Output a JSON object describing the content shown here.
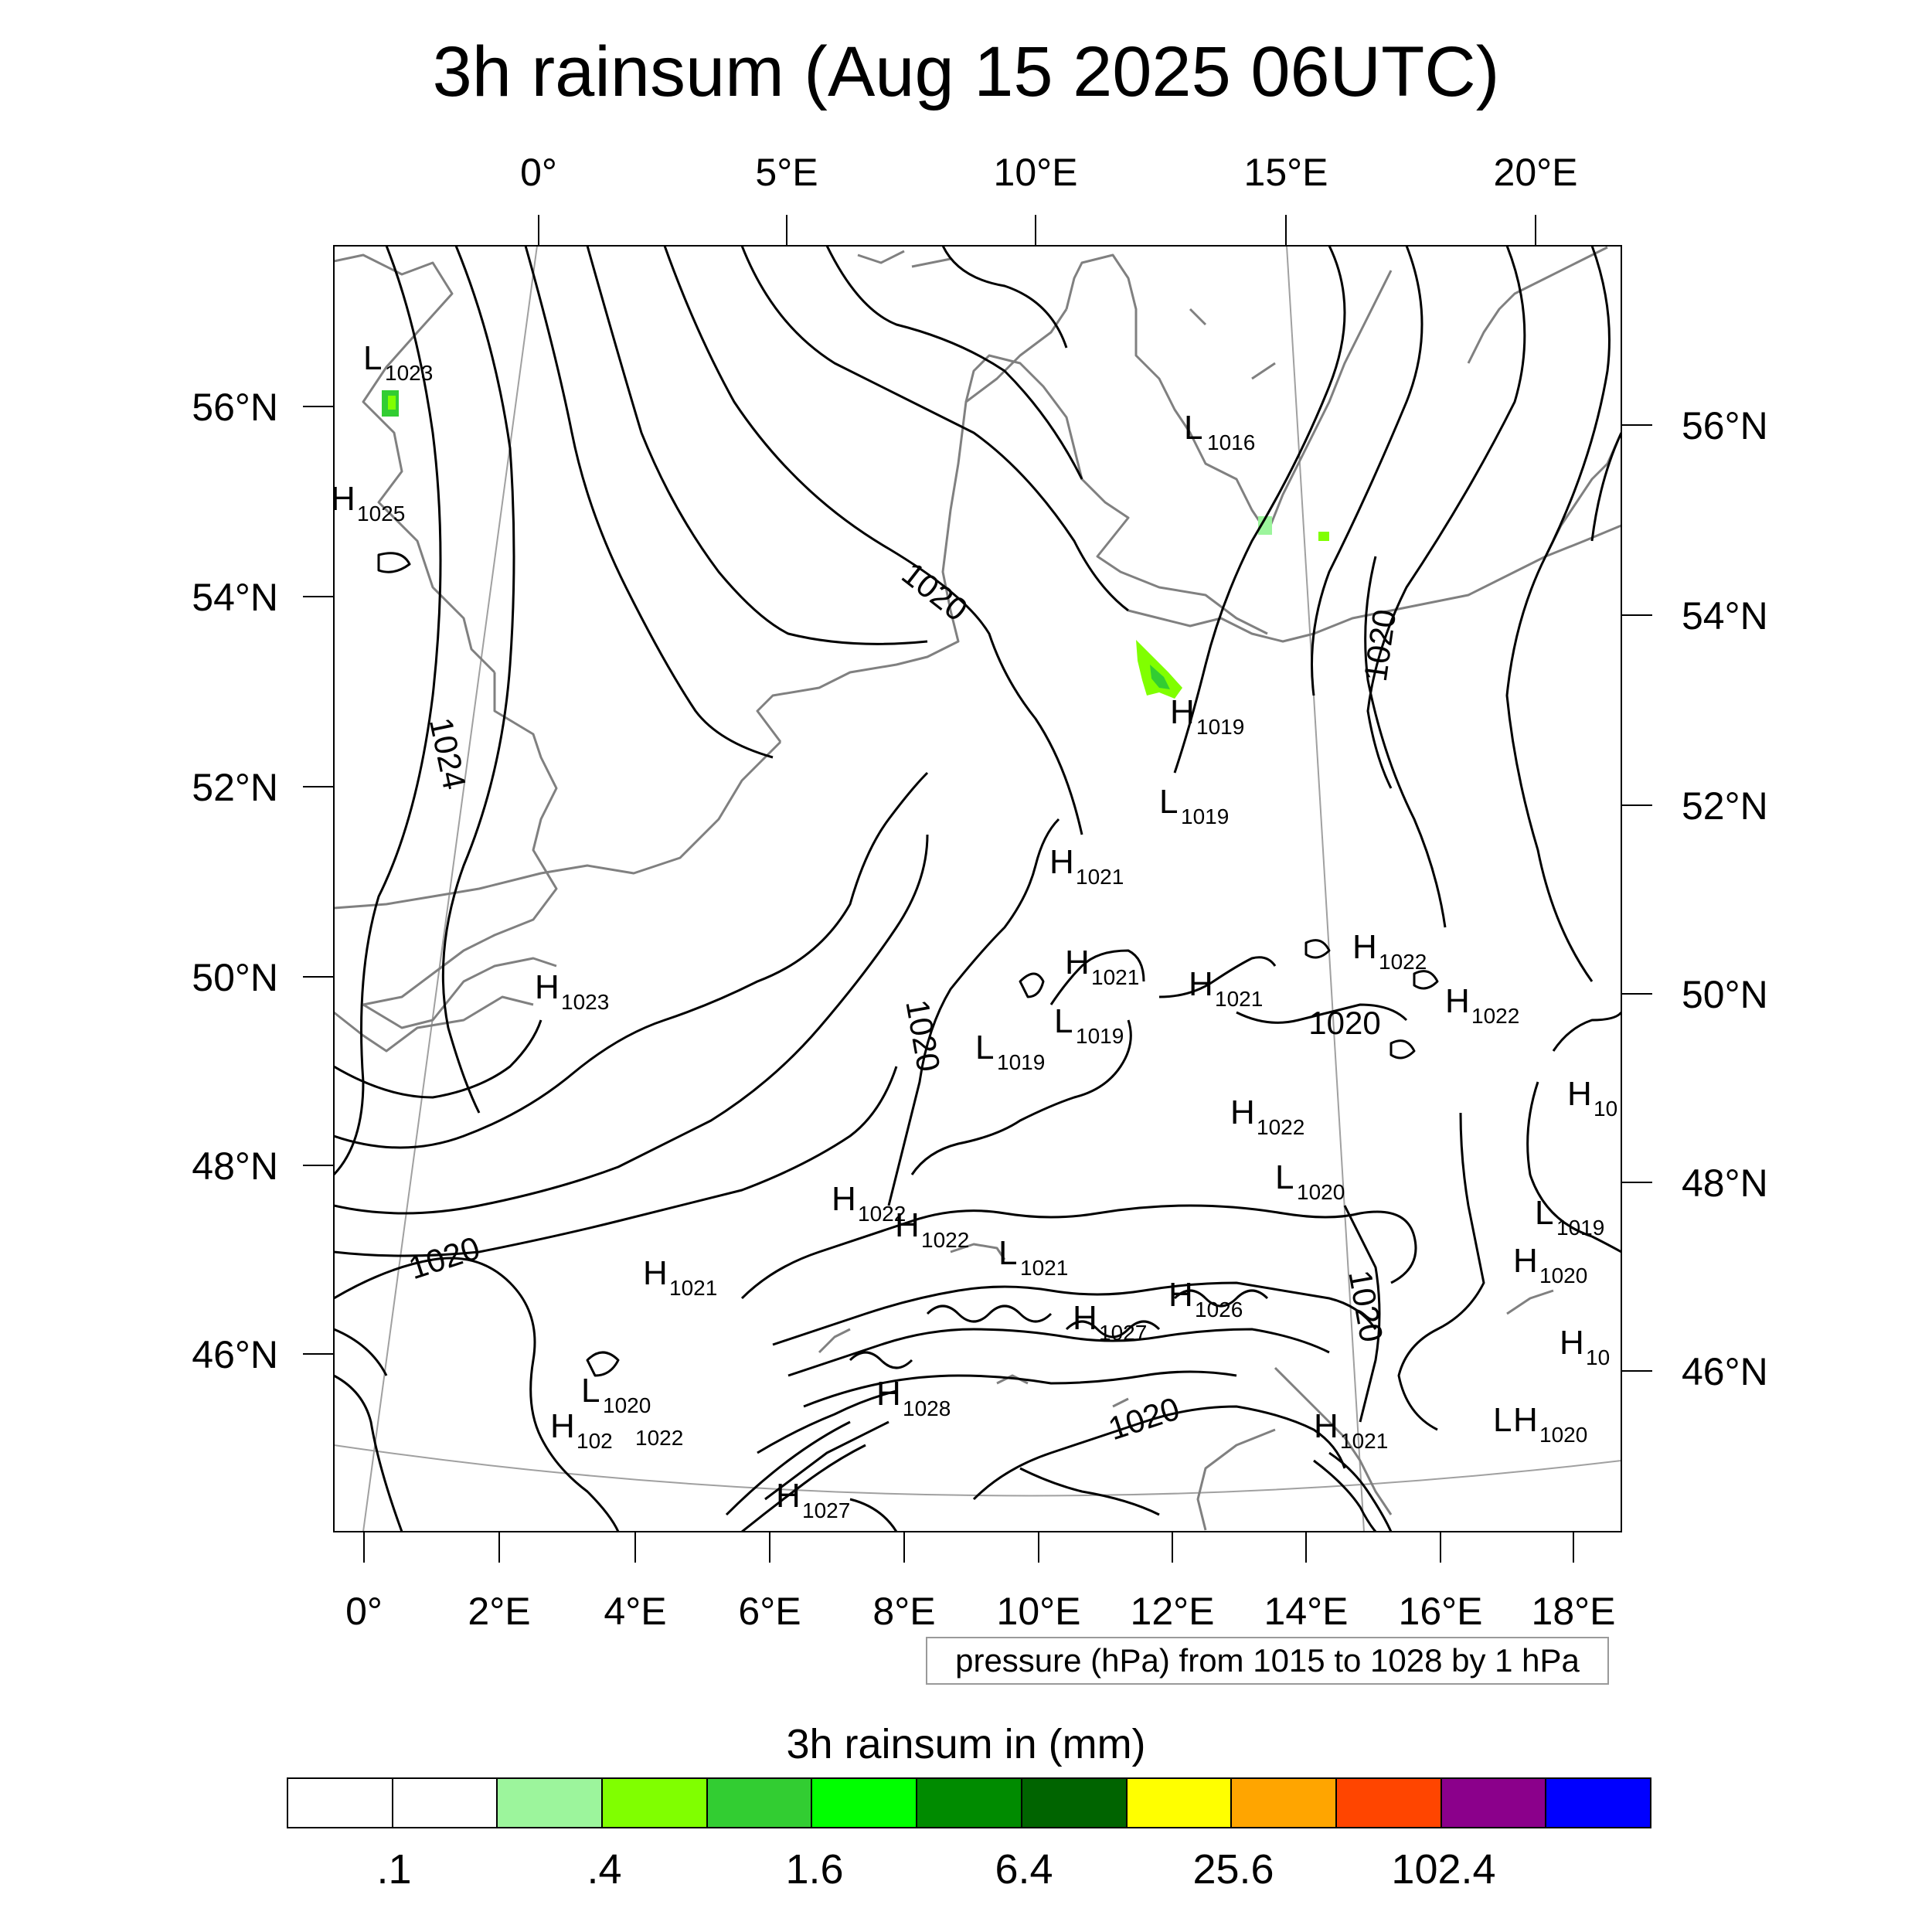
{
  "title": "3h rainsum (Aug 15 2025 06UTC)",
  "top_lon_labels": [
    "0°",
    "5°E",
    "10°E",
    "15°E",
    "20°E"
  ],
  "left_lat_labels": [
    "56°N",
    "54°N",
    "52°N",
    "50°N",
    "48°N",
    "46°N"
  ],
  "right_lat_labels": [
    "56°N",
    "54°N",
    "52°N",
    "50°N",
    "48°N",
    "46°N"
  ],
  "bottom_lon_labels": [
    "0°",
    "2°E",
    "4°E",
    "6°E",
    "8°E",
    "10°E",
    "12°E",
    "14°E",
    "16°E",
    "18°E"
  ],
  "pressure_centers": [
    {
      "type": "L",
      "value": "1023"
    },
    {
      "type": "H",
      "value": "1025"
    },
    {
      "type": "L",
      "value": "1016"
    },
    {
      "type": "H",
      "value": "1019"
    },
    {
      "type": "L",
      "value": "1019"
    },
    {
      "type": "H",
      "value": "1021"
    },
    {
      "type": "H",
      "value": "1022"
    },
    {
      "type": "H",
      "value": "1021"
    },
    {
      "type": "H",
      "value": "1021"
    },
    {
      "type": "H",
      "value": "1022"
    },
    {
      "type": "H",
      "value": "1023"
    },
    {
      "type": "L",
      "value": "1019"
    },
    {
      "type": "L",
      "value": "1019"
    },
    {
      "type": "H",
      "value": "1022"
    },
    {
      "type": "L",
      "value": "1020"
    },
    {
      "type": "L",
      "value": "1019"
    },
    {
      "type": "H",
      "value": "1022"
    },
    {
      "type": "H",
      "value": "1022"
    },
    {
      "type": "L",
      "value": "1021"
    },
    {
      "type": "H",
      "value": "1021"
    },
    {
      "type": "H",
      "value": "1026"
    },
    {
      "type": "H",
      "value": "1027"
    },
    {
      "type": "H",
      "value": "1020"
    },
    {
      "type": "L",
      "value": "1020"
    },
    {
      "type": "H",
      "value": "102"
    },
    {
      "type": "H",
      "value": "1022"
    },
    {
      "type": "H",
      "value": "1028"
    },
    {
      "type": "H",
      "value": "1021"
    },
    {
      "type": "H",
      "value": "1020"
    },
    {
      "type": "H",
      "value": "1027"
    },
    {
      "type": "H",
      "value": "10"
    },
    {
      "type": "H",
      "value": "10"
    }
  ],
  "isobar_labels": [
    "1020",
    "1024",
    "1020",
    "1020",
    "1020",
    "1020",
    "1020",
    "1020"
  ],
  "contour_note": "pressure (hPa) from 1015 to 1028 by 1 hPa",
  "legend_title": "3h rainsum in (mm)",
  "colorbar_colors": [
    "#ffffff",
    "#ffffff",
    "#9cf59c",
    "#80ff00",
    "#32cd32",
    "#00ff00",
    "#008b00",
    "#006400",
    "#ffff00",
    "#ffa500",
    "#ff4500",
    "#8b008b",
    "#0000ff"
  ],
  "colorbar_labels": [
    ".1",
    ".4",
    "1.6",
    "6.4",
    "25.6",
    "102.4"
  ],
  "colors": {
    "coastline": "#808080",
    "isobar": "#000000",
    "graticule": "#a0a0a0"
  }
}
